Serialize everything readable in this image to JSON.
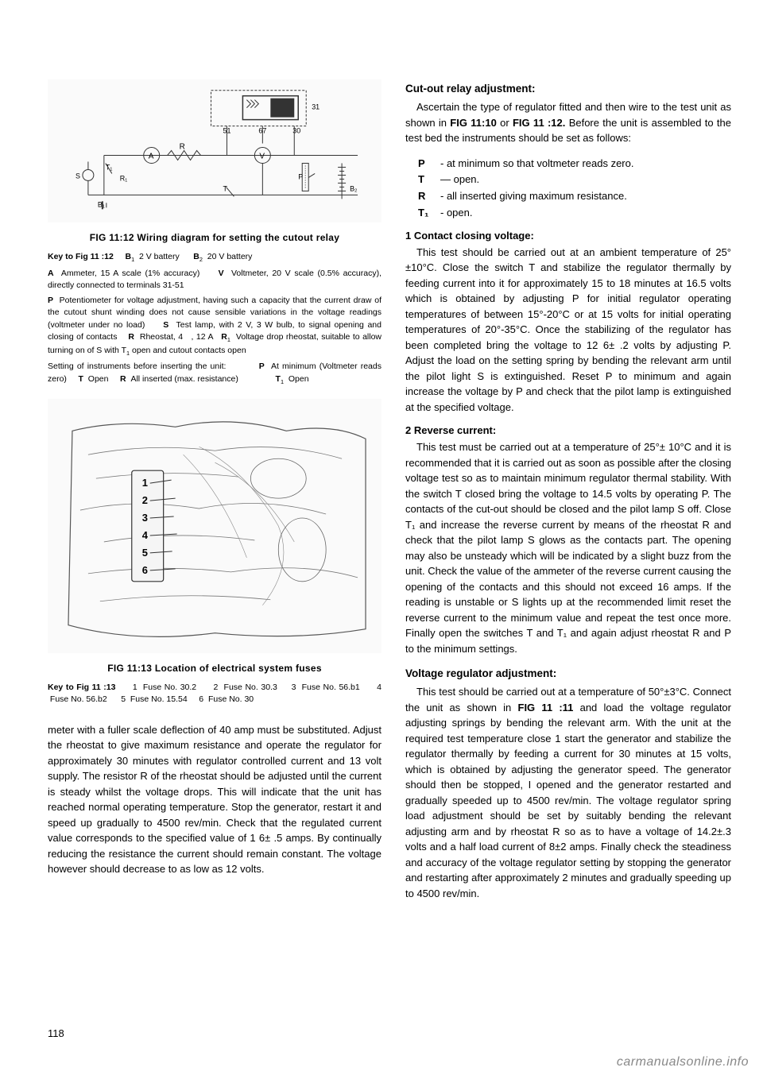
{
  "figures": {
    "fig_11_12": {
      "caption": "FIG 11:12   Wiring diagram for setting the cutout relay",
      "key_lines": [
        "<b>Key to Fig 11 :12</b> &nbsp;&nbsp;&nbsp; <b>B</b><span class='sub1'>1</span> &nbsp;2 V battery &nbsp;&nbsp;&nbsp;&nbsp; <b>B</b><span class='sub1'>2</span> &nbsp;20 V battery",
        "<b>A</b> &nbsp;Ammeter, 15 A scale (1% accuracy) &nbsp;&nbsp;&nbsp; <b>V</b> &nbsp;Voltmeter, 20 V scale (0.5% accuracy), directly connected to terminals 31-51",
        "<b>P</b> &nbsp;Potentiometer for voltage adjustment, having such a capacity that the current draw of the cutout shunt winding does not cause sensible variations in the voltage readings (voltmeter under no load) &nbsp;&nbsp;&nbsp; <b>S</b> &nbsp;Test lamp, with 2 V, 3 W bulb, to signal opening and closing of contacts &nbsp;&nbsp; <b>R</b> &nbsp;Rheostat, 4 &nbsp;&nbsp;, 12 A &nbsp;&nbsp;<b>R</b><span class='sub1'>1</span> &nbsp;Voltage drop rheostat, suitable to allow turning on of S with T<span class='sub1'>1</span> open and cutout contacts open",
        "Setting of instruments before inserting the unit: &nbsp;&nbsp;&nbsp;&nbsp;&nbsp;&nbsp;&nbsp;&nbsp; <b>P</b> &nbsp;At minimum (Voltmeter reads zero) &nbsp;&nbsp;&nbsp; <b>T</b> &nbsp;Open &nbsp;&nbsp;&nbsp; <b>R</b> &nbsp;All inserted (max. resistance) &nbsp;&nbsp;&nbsp;&nbsp;&nbsp;&nbsp;&nbsp;&nbsp;&nbsp;&nbsp;&nbsp;&nbsp;&nbsp;&nbsp; <b>T</b><span class='sub1'>1</span> &nbsp;Open"
      ],
      "labels": [
        "51",
        "67",
        "30",
        "31",
        "R",
        "A",
        "V",
        "T₁",
        "R₁",
        "S",
        "B₁",
        "T",
        "P",
        "B₂"
      ]
    },
    "fig_11_13": {
      "caption": "FIG 11:13   Location of electrical system fuses",
      "key_lines": [
        "<b>Key to Fig 11 :13</b> &nbsp;&nbsp;&nbsp;&nbsp; 1 &nbsp;Fuse No. 30.2 &nbsp;&nbsp;&nbsp;&nbsp; 2 &nbsp;Fuse No. 30.3 &nbsp;&nbsp;&nbsp; 3 &nbsp;Fuse No. 56.b1 &nbsp;&nbsp;&nbsp;&nbsp; 4 &nbsp;Fuse No. 56.b2 &nbsp;&nbsp;&nbsp;&nbsp; 5 &nbsp;Fuse No. 15.54 &nbsp;&nbsp;&nbsp; 6 &nbsp;Fuse No. 30"
      ],
      "callouts": [
        "1",
        "2",
        "3",
        "4",
        "5",
        "6"
      ]
    }
  },
  "left_body": {
    "p1": "meter with a fuller scale deflection of 40 amp must be substituted. Adjust the rheostat to give maximum resistance and operate the regulator for approximately 30 minutes with regulator controlled current and 13 volt supply. The resistor R of the rheostat should be adjusted until the current is steady whilst the voltage drops. This will indicate that the unit has reached normal operating temperature. Stop the generator, restart it and speed up gradually to 4500 rev/min. Check that the regulated current value corresponds to the specified value of 1 6± .5 amps. By continually reducing the resistance the current should remain constant. The voltage however should decrease to as low as 12 volts."
  },
  "right": {
    "cutout_heading": "Cut-out relay adjustment:",
    "cutout_p1": "Ascertain the type of regulator fitted and then wire to the test unit as shown in <b>FIG 11:10</b> or <b>FIG 11 :12.</b> Before the unit is assembled to the test bed the instruments should be set as follows:",
    "settings": [
      {
        "sym": "P",
        "txt": "-  at minimum so that voltmeter reads zero."
      },
      {
        "sym": "T",
        "txt": "— open."
      },
      {
        "sym": "R",
        "txt": "-  all inserted giving maximum resistance."
      },
      {
        "sym": "T₁",
        "txt": "-  open."
      }
    ],
    "sec1_heading": "1  Contact closing voltage:",
    "sec1_p1": "This test should be carried out at an ambient temperature of 25°±10°C. Close the switch T and stabilize the regulator thermally by feeding current into it for approximately 15 to 18 minutes at 16.5 volts which is obtained by adjusting P for initial regulator operating temperatures of between 15°-20°C or at 15 volts for initial operating temperatures of 20°-35°C. Once the stabilizing of the regulator has been completed bring the voltage to 12 6± .2 volts by adjusting P. Adjust the load on the setting spring by bending the relevant arm until the pilot light S is extinguished. Reset P to minimum and again increase the voltage by P and check that the pilot lamp is extinguished at the specified voltage.",
    "sec2_heading": "2  Reverse current:",
    "sec2_p1": "This test must be carried out at a temperature of 25°± 10°C and it is recommended that it is carried out as soon as possible after the closing voltage test so as to maintain minimum regulator thermal stability. With the switch T closed bring the voltage to 14.5 volts by operating P. The contacts of the cut-out should be closed and the pilot lamp S off. Close T₁ and increase the reverse current by means of the rheostat R and check that the pilot lamp S glows as the contacts part. The opening may also be unsteady which will be indicated by a slight buzz from the unit. Check the value of the ammeter of the reverse current causing the opening of the contacts and this should not exceed 16 amps. If the reading is unstable or S lights up at the recommended limit reset the reverse current to the minimum value and repeat the test once more. Finally open the switches T and T₁ and again adjust rheostat R and P to the minimum settings.",
    "volt_heading": "Voltage regulator adjustment:",
    "volt_p1": "This test should be carried out at a temperature of 50°±3°C. Connect the unit as shown in <b>FIG 11 :11</b> and load the voltage regulator adjusting springs by bending the relevant arm. With the unit at the required test temperature close 1 start the generator and stabilize the regulator thermally by feeding a current for 30 minutes at 15 volts, which is obtained by adjusting the generator speed. The generator should then be stopped, I opened and the generator restarted and gradually speeded up to 4500 rev/min. The voltage regulator spring load adjustment should be set by suitably bending the relevant adjusting arm and by rheostat R so as to have a voltage of 14.2±.3 volts and a half load current of 8±2 amps. Finally check the steadiness and accuracy of the voltage regulator setting by stopping the generator and restarting after approximately 2 minutes and gradually speeding up to 4500 rev/min."
  },
  "page_number": "118",
  "watermark": "carmanualsonline.info"
}
